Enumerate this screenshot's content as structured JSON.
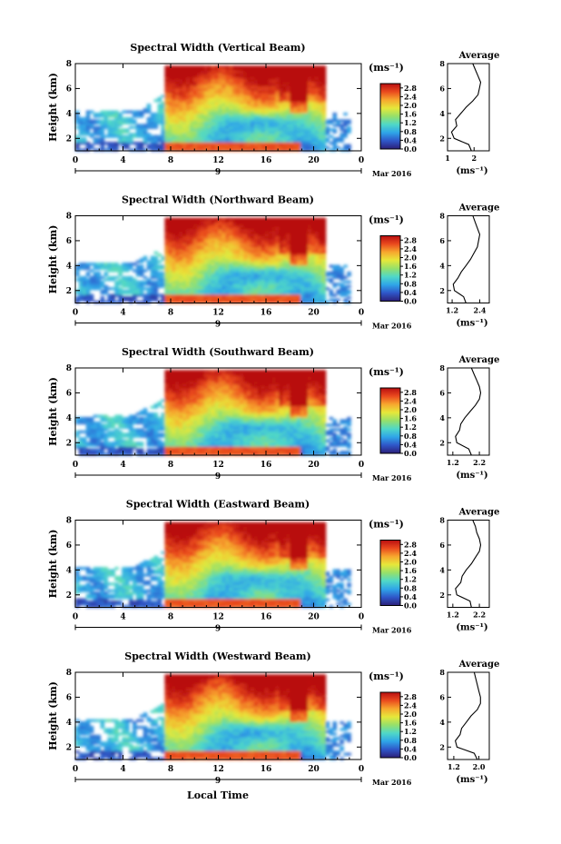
{
  "figure": {
    "xlabel": "Local Time",
    "date_label": "Mar 2016",
    "day_label": "9",
    "colorbar_unit": "(ms⁻¹)",
    "average_title": "Average",
    "average_xlabel": "(ms⁻¹)",
    "colormap": [
      "#2c1f78",
      "#2f56c8",
      "#2fa5e8",
      "#4fd8c8",
      "#96e06a",
      "#e6e83a",
      "#f7a72e",
      "#ea4a1e",
      "#b80e10"
    ]
  },
  "chart_data": [
    {
      "type": "heatmap",
      "title": "Spectral Width (Vertical Beam)",
      "ylabel": "Height (km)",
      "x_ticks": [
        "0",
        "4",
        "8",
        "12",
        "16",
        "20",
        "0"
      ],
      "y_ticks": [
        "2",
        "4",
        "6",
        "8"
      ],
      "xlim": [
        0,
        24
      ],
      "ylim": [
        1,
        8
      ],
      "colorbar_ticks": [
        "0.0",
        "0.4",
        "0.8",
        "1.2",
        "1.6",
        "2.0",
        "2.4",
        "2.8"
      ],
      "colorbar_range": [
        0.0,
        3.0
      ],
      "average": {
        "title": "Average",
        "xlabel": "(ms⁻¹)",
        "x_ticks": [
          "1",
          "2"
        ],
        "xlim": [
          1,
          2.3
        ],
        "ylim": [
          1,
          8
        ],
        "y_ticks": [
          "2",
          "4",
          "6",
          "8"
        ],
        "height": [
          1.0,
          1.5,
          2.0,
          2.5,
          3.0,
          3.5,
          4.0,
          4.5,
          5.0,
          5.5,
          6.0,
          6.5,
          7.0,
          7.5,
          8.0
        ],
        "value": [
          1.9,
          1.8,
          1.25,
          1.15,
          1.35,
          1.3,
          1.5,
          1.7,
          1.95,
          2.15,
          2.2,
          2.25,
          2.15,
          2.05,
          1.95
        ]
      }
    },
    {
      "type": "heatmap",
      "title": "Spectral Width (Northward Beam)",
      "ylabel": "Height (km)",
      "x_ticks": [
        "0",
        "4",
        "8",
        "12",
        "16",
        "20",
        "0"
      ],
      "y_ticks": [
        "2",
        "4",
        "6",
        "8"
      ],
      "xlim": [
        0,
        24
      ],
      "ylim": [
        1,
        8
      ],
      "colorbar_ticks": [
        "0.0",
        "0.4",
        "0.8",
        "1.2",
        "1.6",
        "2.0",
        "2.4",
        "2.8"
      ],
      "colorbar_range": [
        0.0,
        3.0
      ],
      "average": {
        "title": "Average",
        "xlabel": "(ms⁻¹)",
        "x_ticks": [
          "1.2",
          "2.4"
        ],
        "xlim": [
          1.0,
          2.5
        ],
        "ylim": [
          1,
          8
        ],
        "y_ticks": [
          "2",
          "4",
          "6",
          "8"
        ],
        "height": [
          1.0,
          1.5,
          2.0,
          2.5,
          3.0,
          3.5,
          4.0,
          4.5,
          5.0,
          5.5,
          6.0,
          6.5,
          7.0,
          7.5,
          8.0
        ],
        "value": [
          1.8,
          1.7,
          1.3,
          1.25,
          1.45,
          1.6,
          1.8,
          2.0,
          2.15,
          2.3,
          2.35,
          2.4,
          2.3,
          2.2,
          2.1
        ]
      }
    },
    {
      "type": "heatmap",
      "title": "Spectral Width (Southward Beam)",
      "ylabel": "Height (km)",
      "x_ticks": [
        "0",
        "4",
        "8",
        "12",
        "16",
        "20",
        "0"
      ],
      "y_ticks": [
        "2",
        "4",
        "6",
        "8"
      ],
      "xlim": [
        0,
        24
      ],
      "ylim": [
        1,
        8
      ],
      "colorbar_ticks": [
        "0.0",
        "0.4",
        "0.8",
        "1.2",
        "1.6",
        "2.0",
        "2.4",
        "2.8"
      ],
      "colorbar_range": [
        0.0,
        3.0
      ],
      "average": {
        "title": "Average",
        "xlabel": "(ms⁻¹)",
        "x_ticks": [
          "1.2",
          "2.2"
        ],
        "xlim": [
          1.0,
          2.3
        ],
        "ylim": [
          1,
          8
        ],
        "y_ticks": [
          "2",
          "4",
          "6",
          "8"
        ],
        "height": [
          1.0,
          1.5,
          2.0,
          2.5,
          3.0,
          3.5,
          4.0,
          4.5,
          5.0,
          5.5,
          6.0,
          6.5,
          7.0,
          7.5,
          8.0
        ],
        "value": [
          1.9,
          1.8,
          1.35,
          1.3,
          1.45,
          1.5,
          1.65,
          1.85,
          2.05,
          2.2,
          2.25,
          2.2,
          2.1,
          2.0,
          1.9
        ]
      }
    },
    {
      "type": "heatmap",
      "title": "Spectral Width (Eastward Beam)",
      "ylabel": "Height (km)",
      "x_ticks": [
        "0",
        "4",
        "8",
        "12",
        "16",
        "20",
        "0"
      ],
      "y_ticks": [
        "2",
        "4",
        "6",
        "8"
      ],
      "xlim": [
        0,
        24
      ],
      "ylim": [
        1,
        8
      ],
      "colorbar_ticks": [
        "0.0",
        "0.4",
        "0.8",
        "1.2",
        "1.6",
        "2.0",
        "2.4",
        "2.8"
      ],
      "colorbar_range": [
        0.0,
        3.0
      ],
      "average": {
        "title": "Average",
        "xlabel": "(ms⁻¹)",
        "x_ticks": [
          "1.2",
          "2.2"
        ],
        "xlim": [
          1.0,
          2.3
        ],
        "ylim": [
          1,
          8
        ],
        "y_ticks": [
          "2",
          "4",
          "6",
          "8"
        ],
        "height": [
          1.0,
          1.5,
          2.0,
          2.5,
          3.0,
          3.5,
          4.0,
          4.5,
          5.0,
          5.5,
          6.0,
          6.5,
          7.0,
          7.5,
          8.0
        ],
        "value": [
          1.9,
          1.85,
          1.35,
          1.3,
          1.5,
          1.55,
          1.7,
          1.9,
          2.05,
          2.2,
          2.25,
          2.2,
          2.1,
          2.05,
          1.95
        ]
      }
    },
    {
      "type": "heatmap",
      "title": "Spectral Width (Westward Beam)",
      "ylabel": "Height (km)",
      "x_ticks": [
        "0",
        "4",
        "8",
        "12",
        "16",
        "20",
        "0"
      ],
      "y_ticks": [
        "2",
        "4",
        "6",
        "8"
      ],
      "xlim": [
        0,
        24
      ],
      "ylim": [
        1,
        8
      ],
      "colorbar_ticks": [
        "0.0",
        "0.4",
        "0.8",
        "1.2",
        "1.6",
        "2.0",
        "2.4",
        "2.8"
      ],
      "colorbar_range": [
        0.0,
        3.0
      ],
      "average": {
        "title": "Average",
        "xlabel": "(ms⁻¹)",
        "x_ticks": [
          "1.2",
          "2.0"
        ],
        "xlim": [
          1.0,
          2.1
        ],
        "ylim": [
          1,
          8
        ],
        "y_ticks": [
          "2",
          "4",
          "6",
          "8"
        ],
        "height": [
          1.0,
          1.5,
          2.0,
          2.5,
          3.0,
          3.5,
          4.0,
          4.5,
          5.0,
          5.5,
          6.0,
          6.5,
          7.0,
          7.5,
          8.0
        ],
        "value": [
          1.95,
          1.85,
          1.3,
          1.25,
          1.4,
          1.45,
          1.6,
          1.75,
          1.95,
          2.05,
          2.05,
          2.0,
          1.95,
          1.9,
          1.85
        ]
      }
    }
  ]
}
